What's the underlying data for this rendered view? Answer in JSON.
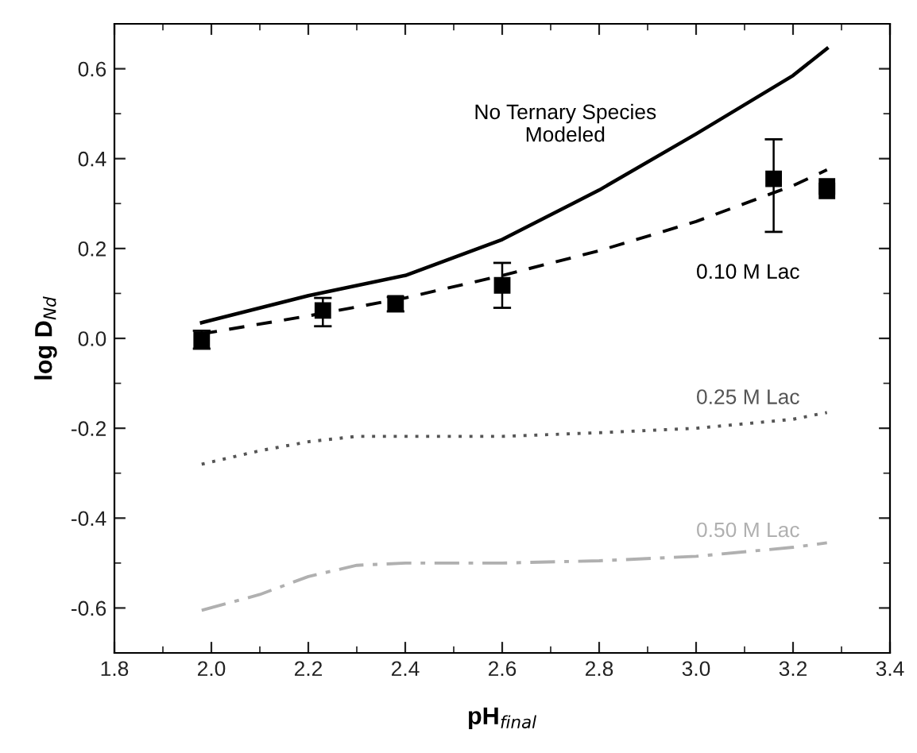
{
  "chart_data": {
    "type": "line",
    "xlabel": "pH$_{final}$",
    "ylabel": "log D$_{Nd}$",
    "xlim": [
      1.8,
      3.4
    ],
    "ylim": [
      -0.7,
      0.7
    ],
    "xticks": [
      1.8,
      {
        "value": 2,
        "label": "2.0"
      },
      2.2,
      2.4,
      2.6,
      2.8,
      {
        "value": 3,
        "label": "3.0"
      },
      3.2,
      3.4
    ],
    "yticks": [
      -0.6,
      -0.4,
      -0.2,
      {
        "value": 0,
        "label": "0.0"
      },
      0.2,
      0.4,
      0.6
    ],
    "grid": false,
    "legend": false,
    "series": [
      {
        "name": "No Ternary Species\nModeled",
        "color": "#000000",
        "line_style": "solid",
        "x": [
          1.98,
          2.2,
          2.4,
          2.6,
          2.8,
          3.0,
          3.2,
          3.27
        ],
        "values": [
          0.035,
          0.095,
          0.14,
          0.22,
          0.33,
          0.455,
          0.585,
          0.645
        ]
      },
      {
        "name": "0.10 M Lac",
        "color": "#000000",
        "line_style": "dashed",
        "x": [
          1.98,
          2.2,
          2.4,
          2.6,
          2.8,
          3.0,
          3.2,
          3.27
        ],
        "values": [
          0.01,
          0.05,
          0.09,
          0.14,
          0.195,
          0.26,
          0.34,
          0.375
        ]
      },
      {
        "name": "0.25 M Lac",
        "color": "#555555",
        "line_style": "dotted",
        "x": [
          1.98,
          2.1,
          2.2,
          2.3,
          2.5,
          2.6,
          2.8,
          3.0,
          3.2,
          3.27
        ],
        "values": [
          -0.28,
          -0.25,
          -0.23,
          -0.218,
          -0.218,
          -0.218,
          -0.21,
          -0.2,
          -0.18,
          -0.165
        ]
      },
      {
        "name": "0.50 M Lac",
        "color": "#b0b0b0",
        "line_style": "dashdot",
        "x": [
          1.98,
          2.1,
          2.2,
          2.3,
          2.4,
          2.6,
          2.8,
          3.0,
          3.2,
          3.27
        ],
        "values": [
          -0.605,
          -0.57,
          -0.53,
          -0.505,
          -0.5,
          -0.5,
          -0.495,
          -0.485,
          -0.465,
          -0.455
        ]
      },
      {
        "type": "scatter",
        "marker": "square",
        "color": "#000000",
        "x": [
          1.98,
          2.23,
          2.38,
          2.6,
          3.16,
          3.27,
          3.27
        ],
        "values": [
          -0.003,
          0.062,
          0.078,
          0.118,
          0.355,
          0.338,
          0.328
        ],
        "errors": [
          0.02,
          [
            0.027,
            0.09
          ],
          [
            0.06,
            0.092
          ],
          [
            0.068,
            0.168
          ],
          [
            0.237,
            0.443
          ],
          null,
          null
        ]
      }
    ]
  }
}
